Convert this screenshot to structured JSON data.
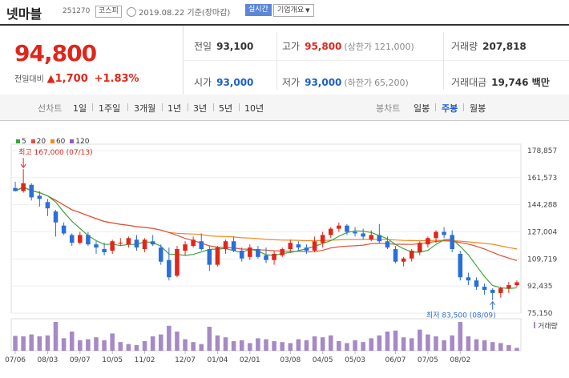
{
  "header": {
    "name": "넷마블",
    "code": "251270",
    "market": "코스피",
    "date": "2019.08.22 기준(장마감)",
    "realtime_label": "실시간",
    "company_label": "기업개요"
  },
  "quote": {
    "price": "94,800",
    "change_label": "전일대비",
    "change_arrow": "▲",
    "change": "1,700",
    "change_pct": "+1.83%"
  },
  "stats": {
    "prev_label": "전일",
    "prev": "93,100",
    "high_label": "고가",
    "high": "95,800",
    "upper_label": "(상한가",
    "upper": "121,000)",
    "volume_label": "거래량",
    "volume": "207,818",
    "open_label": "시가",
    "open": "93,000",
    "low_label": "저가",
    "low": "93,000",
    "lower_label": "(하한가",
    "lower": "65,200)",
    "amount_label": "거래대금",
    "amount": "19,746 백만"
  },
  "tabs": {
    "line_label": "선차트",
    "line": [
      "1일",
      "1주일",
      "3개월",
      "1년",
      "3년",
      "5년",
      "10년"
    ],
    "candle_label": "봉차트",
    "candle": [
      "일봉",
      "주봉",
      "월봉"
    ],
    "candle_selected": "주봉"
  },
  "colors": {
    "up": "#e0261b",
    "down": "#2b6fd6",
    "ma5": "#3aa63a",
    "ma20": "#e0503d",
    "ma60": "#ef8a20",
    "ma120": "#8f5cba",
    "volume": "#a58ac6"
  },
  "chart_data": {
    "type": "candlestick",
    "legend": [
      "5",
      "20",
      "60",
      "120"
    ],
    "y_ticks": [
      178857,
      161573,
      144288,
      127004,
      109719,
      92435,
      75150
    ],
    "y_tick_labels": [
      "178,857",
      "161,573",
      "144,288",
      "127,004",
      "109,719",
      "92,435",
      "75,150"
    ],
    "ylim": [
      75150,
      178857
    ],
    "x_labels": [
      "07/06",
      "08/03",
      "09/07",
      "10/05",
      "11/02",
      "12/07",
      "01/04",
      "02/01",
      "03/08",
      "04/05",
      "05/03",
      "06/07",
      "07/05",
      "08/02"
    ],
    "x_label_index": [
      0,
      4,
      8,
      12,
      16,
      21,
      25,
      29,
      34,
      38,
      42,
      47,
      51,
      55
    ],
    "max_annotation": "최고 167,000 (07/13)",
    "min_annotation": "최저 83,500 (08/09)",
    "volume_label": "거래량",
    "candles": [
      [
        155000,
        159000,
        153000,
        153000,
        155000
      ],
      [
        153000,
        167000,
        152000,
        158000,
        150000
      ],
      [
        157000,
        158000,
        147000,
        149000,
        170000
      ],
      [
        150000,
        153000,
        143000,
        148000,
        150000
      ],
      [
        146000,
        148000,
        137000,
        142000,
        160000
      ],
      [
        140000,
        141000,
        124000,
        133000,
        300000
      ],
      [
        131000,
        133000,
        125000,
        126000,
        130000
      ],
      [
        125000,
        126000,
        118000,
        120000,
        200000
      ],
      [
        120000,
        127000,
        119000,
        125000,
        110000
      ],
      [
        125000,
        127000,
        118000,
        119000,
        120000
      ],
      [
        119000,
        121000,
        113000,
        117000,
        140000
      ],
      [
        116000,
        120000,
        112000,
        114000,
        110000
      ],
      [
        115000,
        122000,
        113000,
        121000,
        180000
      ],
      [
        120000,
        123000,
        118000,
        120000,
        90000
      ],
      [
        119000,
        124000,
        117000,
        123000,
        70000
      ],
      [
        122000,
        125000,
        115000,
        117000,
        60000
      ],
      [
        116000,
        123000,
        114000,
        122000,
        100000
      ],
      [
        121000,
        125000,
        118000,
        119000,
        150000
      ],
      [
        117000,
        119000,
        106000,
        108000,
        170000
      ],
      [
        109000,
        117000,
        96000,
        98000,
        260000
      ],
      [
        99000,
        118000,
        98000,
        116000,
        200000
      ],
      [
        115000,
        121000,
        112000,
        119000,
        120000
      ],
      [
        118000,
        124000,
        117000,
        122000,
        90000
      ],
      [
        121000,
        126000,
        115000,
        116000,
        70000
      ],
      [
        116000,
        118000,
        102000,
        106000,
        250000
      ],
      [
        106000,
        118000,
        105000,
        117000,
        160000
      ],
      [
        116000,
        122000,
        113000,
        121000,
        140000
      ],
      [
        121000,
        124000,
        114000,
        115000,
        100000
      ],
      [
        115000,
        117000,
        108000,
        110000,
        110000
      ],
      [
        111000,
        119000,
        109000,
        117000,
        80000
      ],
      [
        116000,
        118000,
        110000,
        111000,
        130000
      ],
      [
        112000,
        117000,
        107000,
        109000,
        120000
      ],
      [
        109000,
        115000,
        106000,
        113000,
        100000
      ],
      [
        112000,
        117000,
        111000,
        116000,
        90000
      ],
      [
        116000,
        122000,
        114000,
        120000,
        80000
      ],
      [
        119000,
        121000,
        115000,
        117000,
        120000
      ],
      [
        117000,
        119000,
        113000,
        115000,
        110000
      ],
      [
        115000,
        124000,
        114000,
        121000,
        150000
      ],
      [
        120000,
        127000,
        117000,
        125000,
        140000
      ],
      [
        125000,
        130000,
        123000,
        129000,
        160000
      ],
      [
        129000,
        133000,
        127000,
        131000,
        100000
      ],
      [
        131000,
        132000,
        125000,
        127000,
        80000
      ],
      [
        127000,
        130000,
        124000,
        126000,
        110000
      ],
      [
        126000,
        129000,
        122000,
        124000,
        90000
      ],
      [
        122000,
        128000,
        121000,
        125000,
        130000
      ],
      [
        125000,
        132000,
        120000,
        121000,
        160000
      ],
      [
        121000,
        124000,
        116000,
        117000,
        200000
      ],
      [
        116000,
        118000,
        107000,
        108000,
        210000
      ],
      [
        108000,
        111000,
        105000,
        110000,
        140000
      ],
      [
        110000,
        116000,
        108000,
        115000,
        130000
      ],
      [
        114000,
        121000,
        112000,
        120000,
        220000
      ],
      [
        119000,
        124000,
        117000,
        123000,
        170000
      ],
      [
        123000,
        128000,
        120000,
        127000,
        150000
      ],
      [
        127000,
        130000,
        123000,
        125000,
        110000
      ],
      [
        125000,
        128000,
        114000,
        116000,
        160000
      ],
      [
        113000,
        115000,
        96000,
        98000,
        300000
      ],
      [
        98000,
        101000,
        93000,
        96000,
        150000
      ],
      [
        96000,
        98000,
        90000,
        92000,
        120000
      ],
      [
        92000,
        94000,
        87000,
        90000,
        110000
      ],
      [
        90000,
        91000,
        83500,
        88000,
        90000
      ],
      [
        88000,
        92000,
        85000,
        91000,
        80000
      ],
      [
        91000,
        95000,
        88000,
        93000,
        60000
      ],
      [
        93000,
        96000,
        92000,
        94800,
        30000
      ]
    ]
  }
}
